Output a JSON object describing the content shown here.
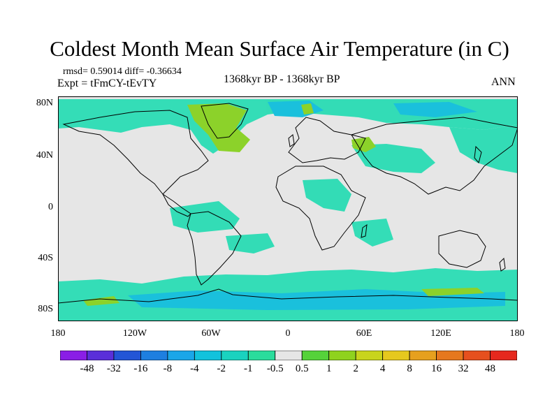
{
  "title": "Coldest Month Mean Surface Air Temperature (in C)",
  "stats": "rmsd= 0.59014 diff= -0.36634",
  "experiment": "Expt = tFmCY-tEvTY",
  "period": "1368kyr BP - 1368kyr BP",
  "season": "ANN",
  "lat_labels": [
    "80N",
    "40N",
    "0",
    "40S",
    "80S"
  ],
  "lon_labels": [
    "180",
    "120W",
    "60W",
    "0",
    "60E",
    "120E",
    "180"
  ],
  "colorbar": {
    "colors": [
      "#8a1ee6",
      "#5a2fd9",
      "#2355d6",
      "#1e7fe0",
      "#1aa6e8",
      "#12c2dc",
      "#1ad2bf",
      "#2adc9c",
      "#e6e6e6",
      "#55d23a",
      "#8fd21e",
      "#c8d41c",
      "#e6c81e",
      "#e6a01e",
      "#e6781e",
      "#e6501e",
      "#e6281e"
    ],
    "labels": [
      "-48",
      "-32",
      "-16",
      "-8",
      "-4",
      "-2",
      "-1",
      "-0.5",
      "0.5",
      "1",
      "2",
      "4",
      "8",
      "16",
      "32",
      "48"
    ]
  },
  "map_colors": {
    "background": "#e6e6e6",
    "cool": "#2adcb4",
    "cooler": "#1ac0dc",
    "warm": "#8cd22a",
    "coast": "#000000"
  }
}
